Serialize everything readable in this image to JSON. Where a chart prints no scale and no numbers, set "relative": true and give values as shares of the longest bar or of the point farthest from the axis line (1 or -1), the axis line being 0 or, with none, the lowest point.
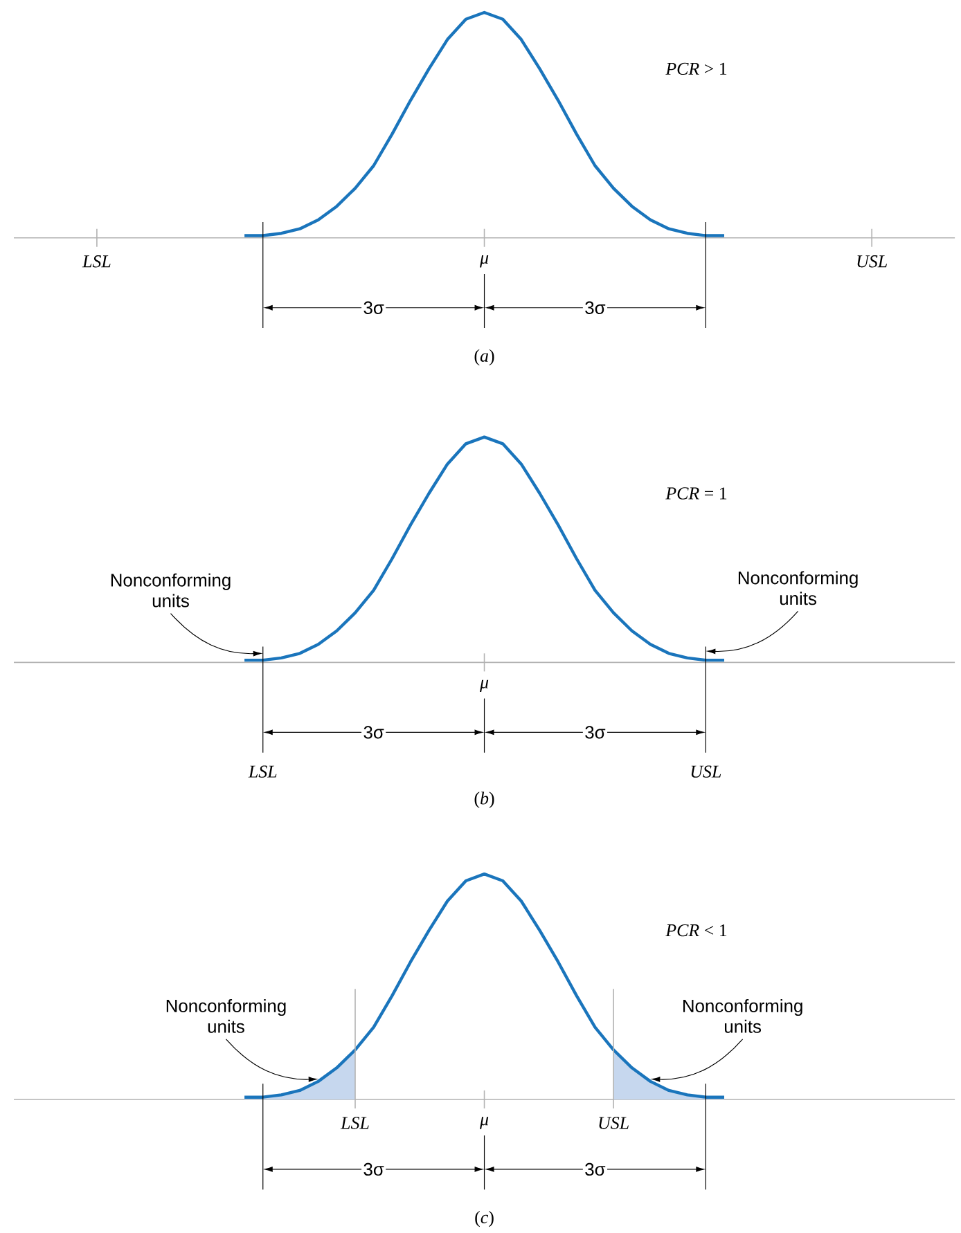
{
  "chart_data": [
    {
      "type": "line",
      "relative": true,
      "categories": [
        null,
        null,
        null,
        null,
        "LSL",
        null,
        null,
        null,
        null,
        null,
        null,
        null,
        null,
        null,
        null,
        null,
        null,
        null,
        null,
        null,
        null,
        null,
        null,
        null,
        null,
        "μ",
        null,
        null,
        null,
        null,
        null,
        null,
        null,
        null,
        null,
        null,
        null,
        null,
        null,
        null,
        null,
        null,
        null,
        null,
        null,
        null,
        "USL",
        null,
        null,
        null,
        null
      ],
      "series": [
        {
          "color": "#1a75bc",
          "values": [
            null,
            null,
            null,
            null,
            null,
            null,
            null,
            null,
            null,
            null,
            null,
            null,
            0.01,
            0.01,
            0.02,
            0.04,
            0.08,
            0.14,
            0.22,
            0.32,
            0.46,
            0.61,
            0.75,
            0.88,
            0.97,
            1,
            0.97,
            0.88,
            0.75,
            0.61,
            0.46,
            0.32,
            0.22,
            0.14,
            0.08,
            0.04,
            0.02,
            0.01,
            0.01,
            null,
            null,
            null,
            null,
            null,
            null,
            null,
            null,
            null,
            null,
            null,
            null
          ]
        }
      ],
      "annotations": [
        "*PCR* > 1",
        "3σ",
        "3σ",
        "(*a*)"
      ]
    },
    {
      "type": "line",
      "relative": true,
      "categories": [
        null,
        null,
        null,
        null,
        null,
        null,
        null,
        null,
        null,
        null,
        null,
        null,
        null,
        "LSL",
        null,
        null,
        null,
        null,
        null,
        null,
        null,
        null,
        null,
        null,
        null,
        "μ",
        null,
        null,
        null,
        null,
        null,
        null,
        null,
        null,
        null,
        null,
        null,
        "USL",
        null,
        null,
        null,
        null,
        null,
        null,
        null,
        null,
        null,
        null,
        null,
        null,
        null
      ],
      "series": [
        {
          "color": "#1a75bc",
          "values": [
            null,
            null,
            null,
            null,
            null,
            null,
            null,
            null,
            null,
            null,
            null,
            null,
            0.01,
            0.01,
            0.02,
            0.04,
            0.08,
            0.14,
            0.22,
            0.32,
            0.46,
            0.61,
            0.75,
            0.88,
            0.97,
            1,
            0.97,
            0.88,
            0.75,
            0.61,
            0.46,
            0.32,
            0.22,
            0.14,
            0.08,
            0.04,
            0.02,
            0.01,
            0.01,
            null,
            null,
            null,
            null,
            null,
            null,
            null,
            null,
            null,
            null,
            null,
            null
          ]
        }
      ],
      "annotations": [
        "*PCR* = 1",
        "3σ",
        "3σ",
        "(*b*)",
        "Nonconforming units",
        "Nonconforming units"
      ]
    },
    {
      "type": "line",
      "relative": true,
      "categories": [
        null,
        null,
        null,
        null,
        null,
        null,
        null,
        null,
        null,
        null,
        null,
        null,
        null,
        null,
        null,
        null,
        null,
        null,
        "LSL",
        null,
        null,
        null,
        null,
        null,
        null,
        "μ",
        null,
        null,
        null,
        null,
        null,
        null,
        "USL",
        null,
        null,
        null,
        null,
        null,
        null,
        null,
        null,
        null,
        null,
        null,
        null,
        null,
        null,
        null,
        null,
        null,
        null
      ],
      "series": [
        {
          "type": "area",
          "color": "#c6d7ee",
          "values": [
            null,
            null,
            null,
            null,
            null,
            null,
            null,
            null,
            null,
            null,
            null,
            null,
            0.01,
            0.01,
            0.02,
            0.04,
            0.08,
            0.14,
            0.22,
            null,
            null,
            null,
            null,
            null,
            null,
            null,
            null,
            null,
            null,
            null,
            null,
            null,
            null,
            null,
            null,
            null,
            null,
            null,
            null,
            null,
            null,
            null,
            null,
            null,
            null,
            null,
            null,
            null,
            null,
            null,
            null
          ]
        },
        {
          "type": "area",
          "color": "#c6d7ee",
          "values": [
            null,
            null,
            null,
            null,
            null,
            null,
            null,
            null,
            null,
            null,
            null,
            null,
            null,
            null,
            null,
            null,
            null,
            null,
            null,
            null,
            null,
            null,
            null,
            null,
            null,
            null,
            null,
            null,
            null,
            null,
            null,
            null,
            0.22,
            0.14,
            0.08,
            0.04,
            0.02,
            0.01,
            0.01,
            null,
            null,
            null,
            null,
            null,
            null,
            null,
            null,
            null,
            null,
            null,
            null
          ]
        },
        {
          "color": "#1a75bc",
          "values": [
            null,
            null,
            null,
            null,
            null,
            null,
            null,
            null,
            null,
            null,
            null,
            null,
            0.01,
            0.01,
            0.02,
            0.04,
            0.08,
            0.14,
            0.22,
            0.32,
            0.46,
            0.61,
            0.75,
            0.88,
            0.97,
            1,
            0.97,
            0.88,
            0.75,
            0.61,
            0.46,
            0.32,
            0.22,
            0.14,
            0.08,
            0.04,
            0.02,
            0.01,
            0.01,
            null,
            null,
            null,
            null,
            null,
            null,
            null,
            null,
            null,
            null,
            null,
            null
          ]
        }
      ],
      "annotations": [
        "*PCR* < 1",
        "3σ",
        "3σ",
        "(*c*)",
        "Nonconforming units",
        "Nonconforming units"
      ]
    }
  ]
}
